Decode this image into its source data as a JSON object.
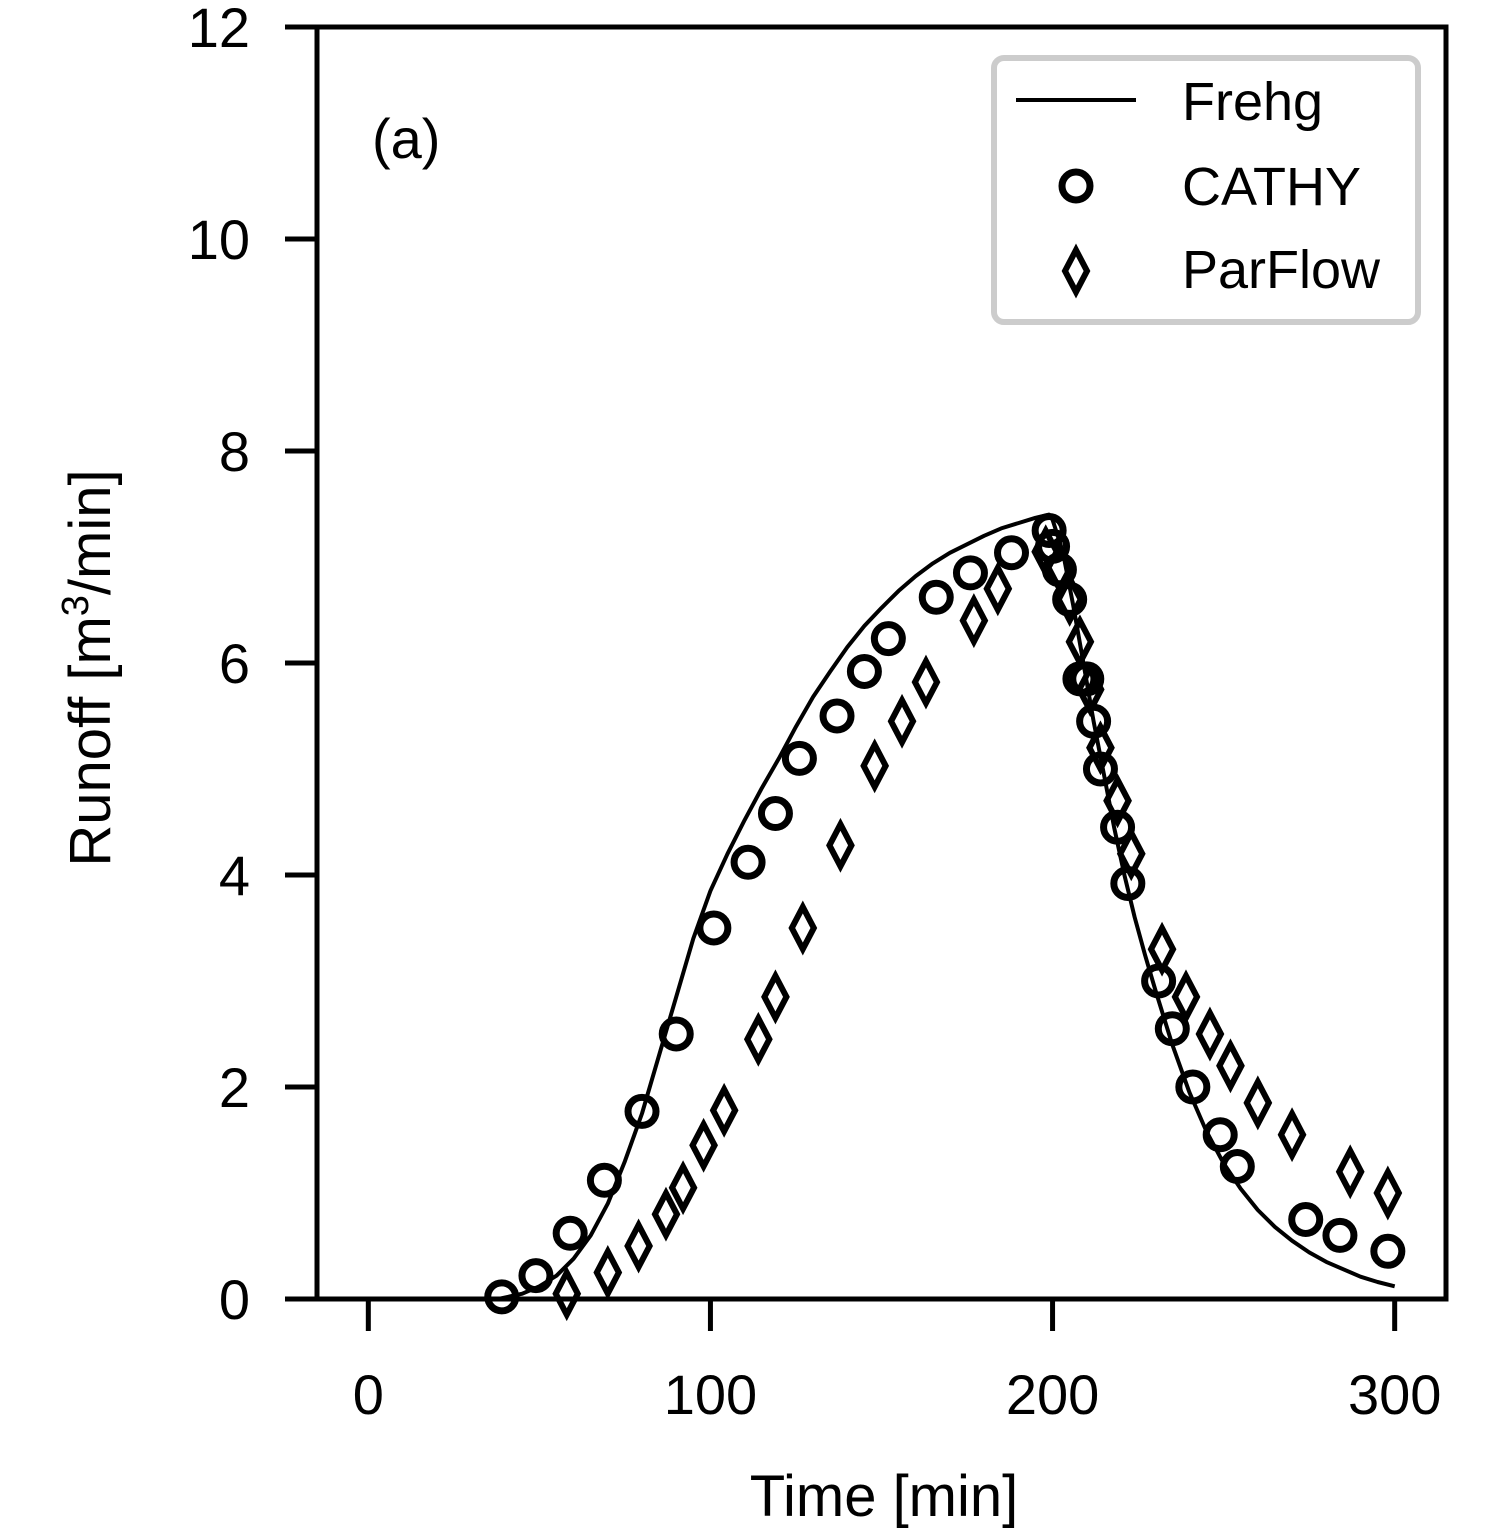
{
  "chart_data": {
    "type": "scatter",
    "panel_label": "(a)",
    "xlabel": "Time [min]",
    "ylabel_main": "Runoff [m",
    "ylabel_sup": "3",
    "ylabel_end": "/min]",
    "xlim": [
      -15,
      315
    ],
    "ylim": [
      0,
      12
    ],
    "xticks": [
      0,
      100,
      200,
      300
    ],
    "yticks": [
      0,
      2,
      4,
      6,
      8,
      10,
      12
    ],
    "legend_position": "top-right",
    "series": [
      {
        "name": "Frehg",
        "style": "line",
        "x": [
          38,
          45,
          50,
          55,
          60,
          65,
          70,
          75,
          80,
          85,
          90,
          95,
          100,
          105,
          110,
          115,
          120,
          125,
          130,
          135,
          140,
          145,
          150,
          155,
          160,
          165,
          170,
          175,
          180,
          185,
          190,
          195,
          199,
          200,
          203,
          206,
          209,
          212,
          215,
          218,
          221,
          224,
          227,
          230,
          235,
          240,
          245,
          250,
          255,
          260,
          265,
          270,
          275,
          280,
          285,
          290,
          295,
          300
        ],
        "y": [
          0,
          0.05,
          0.12,
          0.22,
          0.38,
          0.6,
          0.9,
          1.3,
          1.75,
          2.3,
          2.85,
          3.4,
          3.85,
          4.2,
          4.52,
          4.82,
          5.1,
          5.4,
          5.68,
          5.92,
          6.15,
          6.35,
          6.52,
          6.68,
          6.82,
          6.94,
          7.04,
          7.12,
          7.2,
          7.27,
          7.32,
          7.37,
          7.4,
          7.35,
          7.05,
          6.55,
          6.0,
          5.45,
          4.95,
          4.45,
          4.0,
          3.6,
          3.25,
          2.92,
          2.4,
          1.95,
          1.58,
          1.28,
          1.04,
          0.84,
          0.68,
          0.55,
          0.44,
          0.35,
          0.28,
          0.21,
          0.16,
          0.12
        ]
      },
      {
        "name": "CATHY",
        "style": "circle",
        "x": [
          39,
          49,
          59,
          69,
          80,
          90,
          101,
          111,
          119,
          126,
          137,
          145,
          152,
          166,
          176,
          188,
          199,
          200,
          202,
          205,
          208,
          210,
          212,
          214,
          219,
          222,
          231,
          235,
          241,
          249,
          254,
          274,
          284,
          298
        ],
        "y": [
          0.02,
          0.22,
          0.62,
          1.12,
          1.77,
          2.5,
          3.5,
          4.12,
          4.58,
          5.1,
          5.5,
          5.92,
          6.23,
          6.62,
          6.85,
          7.04,
          7.25,
          7.1,
          6.88,
          6.6,
          5.85,
          5.85,
          5.45,
          5.0,
          4.45,
          3.92,
          3.0,
          2.55,
          2.0,
          1.55,
          1.25,
          0.75,
          0.6,
          0.45
        ]
      },
      {
        "name": "ParFlow",
        "style": "diamond",
        "x": [
          58,
          70,
          79,
          87,
          92,
          98,
          104,
          114,
          119,
          127,
          138,
          148,
          156,
          163,
          177,
          184,
          198,
          202,
          205,
          208,
          211,
          214,
          219,
          223,
          232,
          239,
          246,
          252,
          260,
          270,
          287,
          298
        ],
        "y": [
          0.05,
          0.25,
          0.5,
          0.8,
          1.05,
          1.45,
          1.78,
          2.45,
          2.85,
          3.5,
          4.28,
          5.03,
          5.45,
          5.82,
          6.4,
          6.7,
          7.05,
          6.9,
          6.6,
          6.2,
          5.75,
          5.2,
          4.7,
          4.2,
          3.3,
          2.85,
          2.5,
          2.2,
          1.85,
          1.55,
          1.2,
          1.0
        ]
      }
    ]
  }
}
